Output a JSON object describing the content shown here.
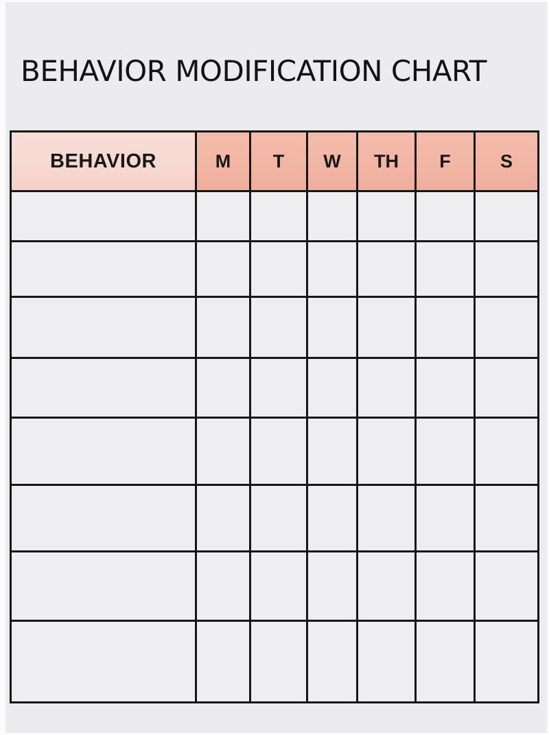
{
  "title": "BEHAVIOR MODIFICATION CHART",
  "table": {
    "behavior_header": "BEHAVIOR",
    "day_headers": [
      "M",
      "T",
      "W",
      "TH",
      "F",
      "S"
    ],
    "empty_row_count": 8,
    "cell_values_note": "all body cells are blank in the printable template"
  },
  "colors": {
    "page_background": "#ececee",
    "outer_margin": "#fbfbfc",
    "behavior_header_bg": "#f7d8d1",
    "day_header_bg": "#f2b4a3",
    "grid_border": "#161616",
    "cell_bg": "#eeeef0",
    "title_text": "#131313"
  }
}
